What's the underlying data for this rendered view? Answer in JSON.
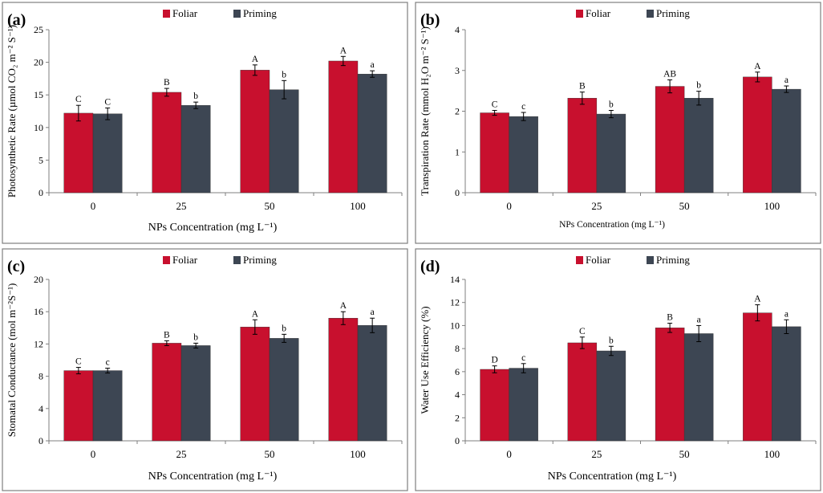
{
  "legend": {
    "foliar": "Foliar",
    "priming": "Priming",
    "foliar_color": "#c8102e",
    "priming_color": "#3d4653"
  },
  "chart_data": [
    {
      "type": "bar",
      "panel": "(a)",
      "categories": [
        "0",
        "25",
        "50",
        "100"
      ],
      "xlabel": "NPs Concentration (mg L⁻¹)",
      "ylabel": "Photosynthetic Rate (µmol CO₂ m⁻² S⁻¹)",
      "ylim": [
        0,
        25
      ],
      "ticks": [
        0,
        5,
        10,
        15,
        20,
        25
      ],
      "series": [
        {
          "name": "Foliar",
          "values": [
            12.2,
            15.4,
            18.8,
            20.2
          ],
          "errors": [
            1.2,
            0.6,
            0.8,
            0.7
          ],
          "letters": [
            "C",
            "B",
            "A",
            "A"
          ]
        },
        {
          "name": "Priming",
          "values": [
            12.1,
            13.4,
            15.8,
            18.2
          ],
          "errors": [
            0.9,
            0.5,
            1.4,
            0.5
          ],
          "letters": [
            "C",
            "b",
            "b",
            "a"
          ]
        }
      ]
    },
    {
      "type": "bar",
      "panel": "(b)",
      "categories": [
        "0",
        "25",
        "50",
        "100"
      ],
      "xlabel": "NPs Concentration (mg L⁻¹)",
      "ylabel": "Transpiration Rate (mmol H₂O m⁻² S⁻¹)",
      "ylim": [
        0,
        4
      ],
      "ticks": [
        0,
        1,
        2,
        3,
        4
      ],
      "series": [
        {
          "name": "Foliar",
          "values": [
            1.96,
            2.32,
            2.61,
            2.84
          ],
          "errors": [
            0.06,
            0.15,
            0.16,
            0.12
          ],
          "letters": [
            "C",
            "B",
            "AB",
            "A"
          ]
        },
        {
          "name": "Priming",
          "values": [
            1.87,
            1.93,
            2.32,
            2.54
          ],
          "errors": [
            0.1,
            0.09,
            0.17,
            0.08
          ],
          "letters": [
            "c",
            "b",
            "b",
            "a"
          ]
        }
      ]
    },
    {
      "type": "bar",
      "panel": "(c)",
      "categories": [
        "0",
        "25",
        "50",
        "100"
      ],
      "xlabel": "NPs Concentration (mg L⁻¹)",
      "ylabel": "Stomatal Conductance (mol m⁻²S⁻¹)",
      "ylim": [
        0,
        20
      ],
      "ticks": [
        0,
        4,
        8,
        12,
        16,
        20
      ],
      "series": [
        {
          "name": "Foliar",
          "values": [
            8.7,
            12.1,
            14.1,
            15.2
          ],
          "errors": [
            0.4,
            0.3,
            0.9,
            0.8
          ],
          "letters": [
            "C",
            "B",
            "A",
            "A"
          ]
        },
        {
          "name": "Priming",
          "values": [
            8.7,
            11.8,
            12.7,
            14.3
          ],
          "errors": [
            0.3,
            0.3,
            0.5,
            0.9
          ],
          "letters": [
            "c",
            "b",
            "b",
            "a"
          ]
        }
      ]
    },
    {
      "type": "bar",
      "panel": "(d)",
      "categories": [
        "0",
        "25",
        "50",
        "100"
      ],
      "xlabel": "NPs Concentration (mg L⁻¹)",
      "ylabel": "Water Use Efficiency (%)",
      "ylim": [
        0,
        14
      ],
      "ticks": [
        0,
        2,
        4,
        6,
        8,
        10,
        12,
        14
      ],
      "series": [
        {
          "name": "Foliar",
          "values": [
            6.2,
            8.5,
            9.8,
            11.1
          ],
          "errors": [
            0.3,
            0.5,
            0.4,
            0.7
          ],
          "letters": [
            "D",
            "C",
            "B",
            "A"
          ]
        },
        {
          "name": "Priming",
          "values": [
            6.3,
            7.8,
            9.3,
            9.9
          ],
          "errors": [
            0.4,
            0.4,
            0.7,
            0.6
          ],
          "letters": [
            "c",
            "b",
            "a",
            "a"
          ]
        }
      ]
    }
  ]
}
